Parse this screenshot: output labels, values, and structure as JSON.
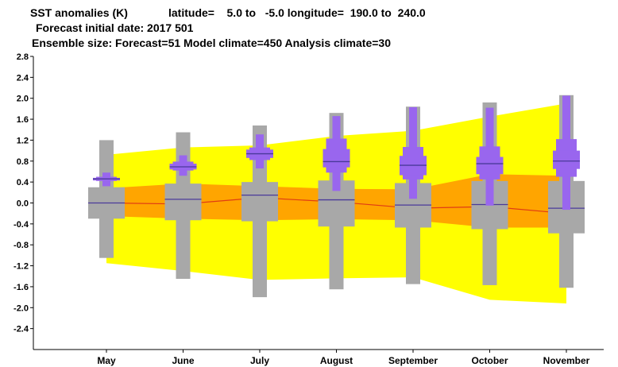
{
  "header": {
    "line1_title": "SST anomalies (K)",
    "line1_latitude": "latitude=    5.0 to   -5.0 longitude=  190.0 to  240.0",
    "line2": "Forecast initial date: 2017 501",
    "line3": "Ensemble size: Forecast=51 Model climate=450 Analysis climate=30"
  },
  "colors": {
    "climate_outer": "#ffff00",
    "climate_inner": "#ffa500",
    "climate_median": "#e03c14",
    "model_box": "#a8a8a8",
    "forecast_box": "#9966ee",
    "median_line": "#4a3a9a",
    "axis": "#000000"
  },
  "chart_data": {
    "type": "box",
    "categories": [
      "May",
      "June",
      "July",
      "August",
      "September",
      "October",
      "November"
    ],
    "ylim": [
      -2.8,
      2.8
    ],
    "yticks": [
      "2.8",
      "2.4",
      "2.0",
      "1.6",
      "1.2",
      "0.8",
      "0.4",
      "0.0",
      "-0.4",
      "-0.8",
      "-1.2",
      "-1.6",
      "-2.0",
      "-2.4"
    ],
    "ytick_values": [
      2.8,
      2.4,
      2.0,
      1.6,
      1.2,
      0.8,
      0.4,
      0.0,
      -0.4,
      -0.8,
      -1.2,
      -1.6,
      -2.0,
      -2.4
    ],
    "analysis_climate": {
      "outer_upper": [
        0.92,
        1.06,
        1.1,
        1.28,
        1.38,
        1.65,
        1.9
      ],
      "outer_lower": [
        -1.15,
        -1.3,
        -1.47,
        -1.44,
        -1.42,
        -1.85,
        -1.92
      ],
      "inner_upper": [
        0.28,
        0.37,
        0.32,
        0.27,
        0.26,
        0.55,
        0.52
      ],
      "inner_lower": [
        -0.25,
        -0.3,
        -0.33,
        -0.31,
        -0.33,
        -0.47,
        -0.47
      ],
      "median": [
        0.0,
        -0.02,
        0.1,
        0.02,
        -0.1,
        -0.07,
        -0.2
      ]
    },
    "model_climate": {
      "whisker_low": [
        -1.05,
        -1.45,
        -1.8,
        -1.65,
        -1.55,
        -1.57,
        -1.62
      ],
      "p10": [
        -0.3,
        -0.33,
        -0.35,
        -0.45,
        -0.47,
        -0.5,
        -0.58
      ],
      "p25": [
        -0.2,
        -0.26,
        -0.3,
        -0.4,
        -0.4,
        -0.42,
        -0.5
      ],
      "median": [
        0.0,
        0.07,
        0.15,
        0.06,
        -0.04,
        -0.03,
        -0.1
      ],
      "p75": [
        0.21,
        0.25,
        0.3,
        0.32,
        0.3,
        0.28,
        0.32
      ],
      "p90": [
        0.3,
        0.37,
        0.4,
        0.43,
        0.38,
        0.42,
        0.42
      ],
      "whisker_high": [
        1.2,
        1.35,
        1.48,
        1.72,
        1.84,
        1.92,
        2.06
      ]
    },
    "forecast": {
      "whisker_low": [
        0.32,
        0.52,
        0.66,
        0.23,
        0.08,
        -0.05,
        -0.13
      ],
      "p10": [
        0.42,
        0.62,
        0.82,
        0.58,
        0.45,
        0.45,
        0.5
      ],
      "p25": [
        0.43,
        0.64,
        0.86,
        0.68,
        0.53,
        0.55,
        0.65
      ],
      "median": [
        0.46,
        0.69,
        0.94,
        0.79,
        0.72,
        0.75,
        0.8
      ],
      "p75": [
        0.48,
        0.75,
        1.02,
        1.03,
        0.9,
        0.88,
        1.0
      ],
      "p90": [
        0.5,
        0.79,
        1.06,
        1.23,
        1.07,
        1.08,
        1.22
      ],
      "whisker_high": [
        0.58,
        0.91,
        1.31,
        1.66,
        1.83,
        1.82,
        2.05
      ]
    }
  }
}
